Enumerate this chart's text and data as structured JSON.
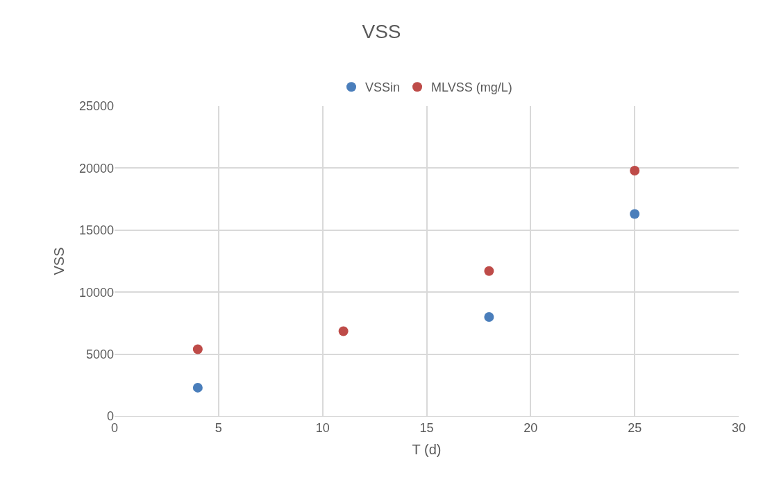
{
  "chart_data": {
    "type": "scatter",
    "title": "VSS",
    "xlabel": "T (d)",
    "ylabel": "VSS",
    "series": [
      {
        "name": "VSSin",
        "color": "#4a7ebb",
        "x": [
          4,
          11,
          18,
          25
        ],
        "values": [
          2300,
          null,
          8000,
          16300
        ]
      },
      {
        "name": "MLVSS (mg/L)",
        "color": "#be4b48",
        "x": [
          4,
          11,
          18,
          25
        ],
        "values": [
          5400,
          6850,
          11700,
          19800
        ]
      }
    ],
    "xlim": [
      0,
      30
    ],
    "xticks": [
      0,
      5,
      10,
      15,
      20,
      25,
      30
    ],
    "ylim": [
      0,
      25000
    ],
    "yticks": [
      0,
      5000,
      10000,
      15000,
      20000,
      25000
    ],
    "grid": true,
    "legend": "top",
    "marker": "circle"
  }
}
